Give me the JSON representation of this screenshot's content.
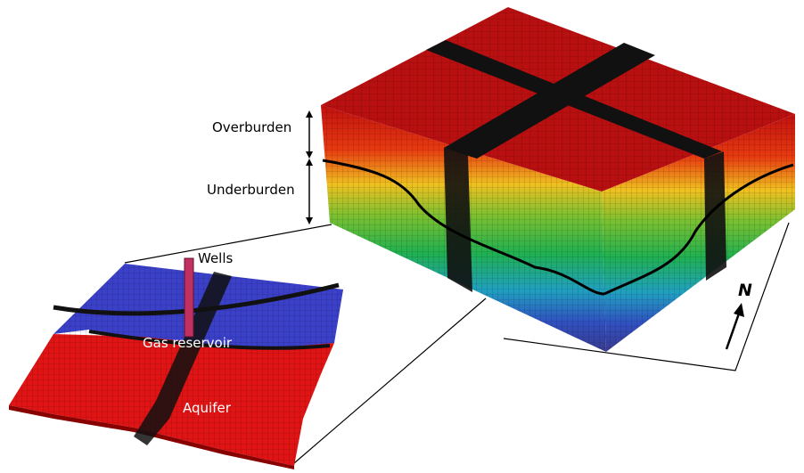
{
  "labels": {
    "overburden": "Overburden",
    "underburden": "Underburden",
    "wells": "Wells",
    "gas_reservoir": "Gas reservoir",
    "aquifer": "Aquifer",
    "north": "N"
  }
}
